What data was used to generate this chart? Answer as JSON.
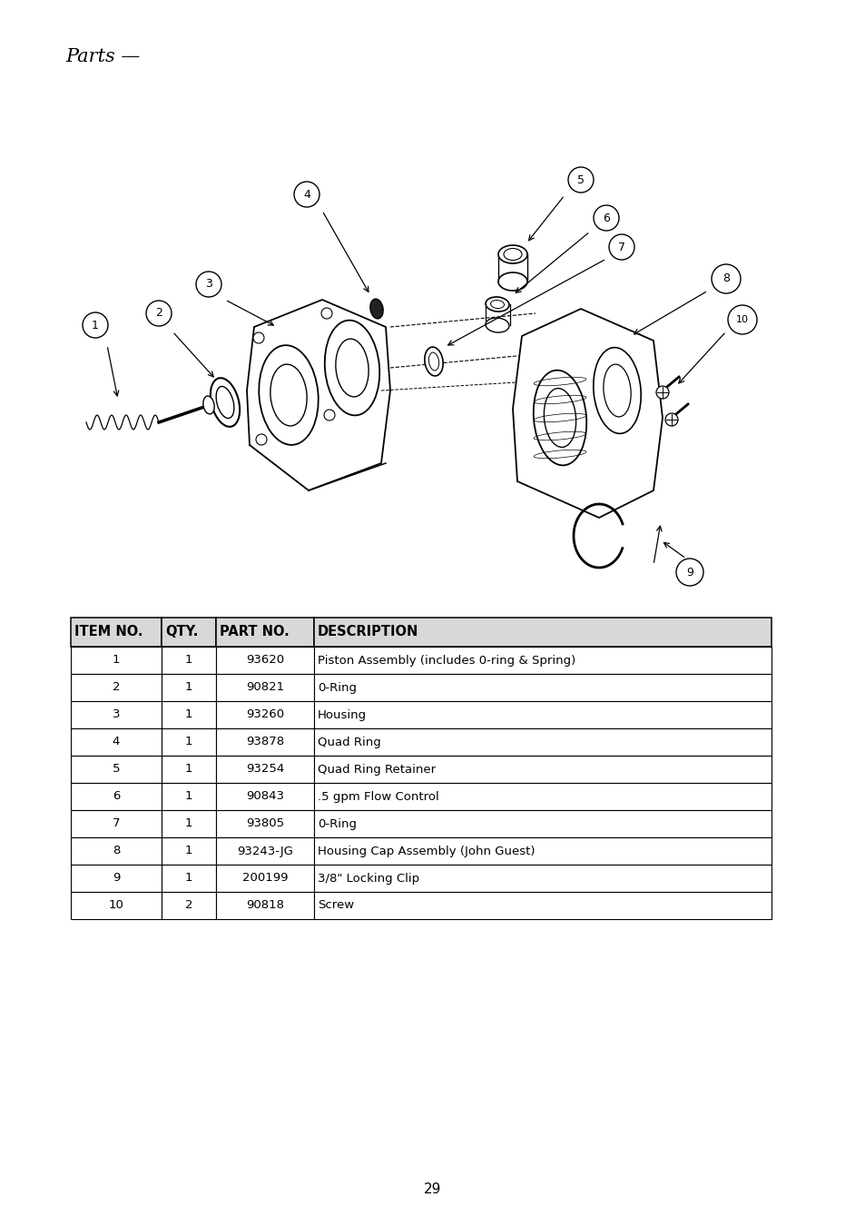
{
  "page_title": "Parts —",
  "page_number": "29",
  "background_color": "#ffffff",
  "table_headers": [
    "ITEM NO.",
    "QTY.",
    "PART NO.",
    "DESCRIPTION"
  ],
  "table_rows": [
    [
      "1",
      "1",
      "93620",
      "Piston Assembly (includes 0-ring & Spring)"
    ],
    [
      "2",
      "1",
      "90821",
      "0-Ring"
    ],
    [
      "3",
      "1",
      "93260",
      "Housing"
    ],
    [
      "4",
      "1",
      "93878",
      "Quad Ring"
    ],
    [
      "5",
      "1",
      "93254",
      "Quad Ring Retainer"
    ],
    [
      "6",
      "1",
      "90843",
      ".5 gpm Flow Control"
    ],
    [
      "7",
      "1",
      "93805",
      "0-Ring"
    ],
    [
      "8",
      "1",
      "93243-JG",
      "Housing Cap Assembly (John Guest)"
    ],
    [
      "9",
      "1",
      "200199",
      "3/8\" Locking Clip"
    ],
    [
      "10",
      "2",
      "90818",
      "Screw"
    ]
  ],
  "header_fontsize": 10.5,
  "row_fontsize": 9.5,
  "title_fontsize": 15,
  "page_num_fontsize": 11
}
